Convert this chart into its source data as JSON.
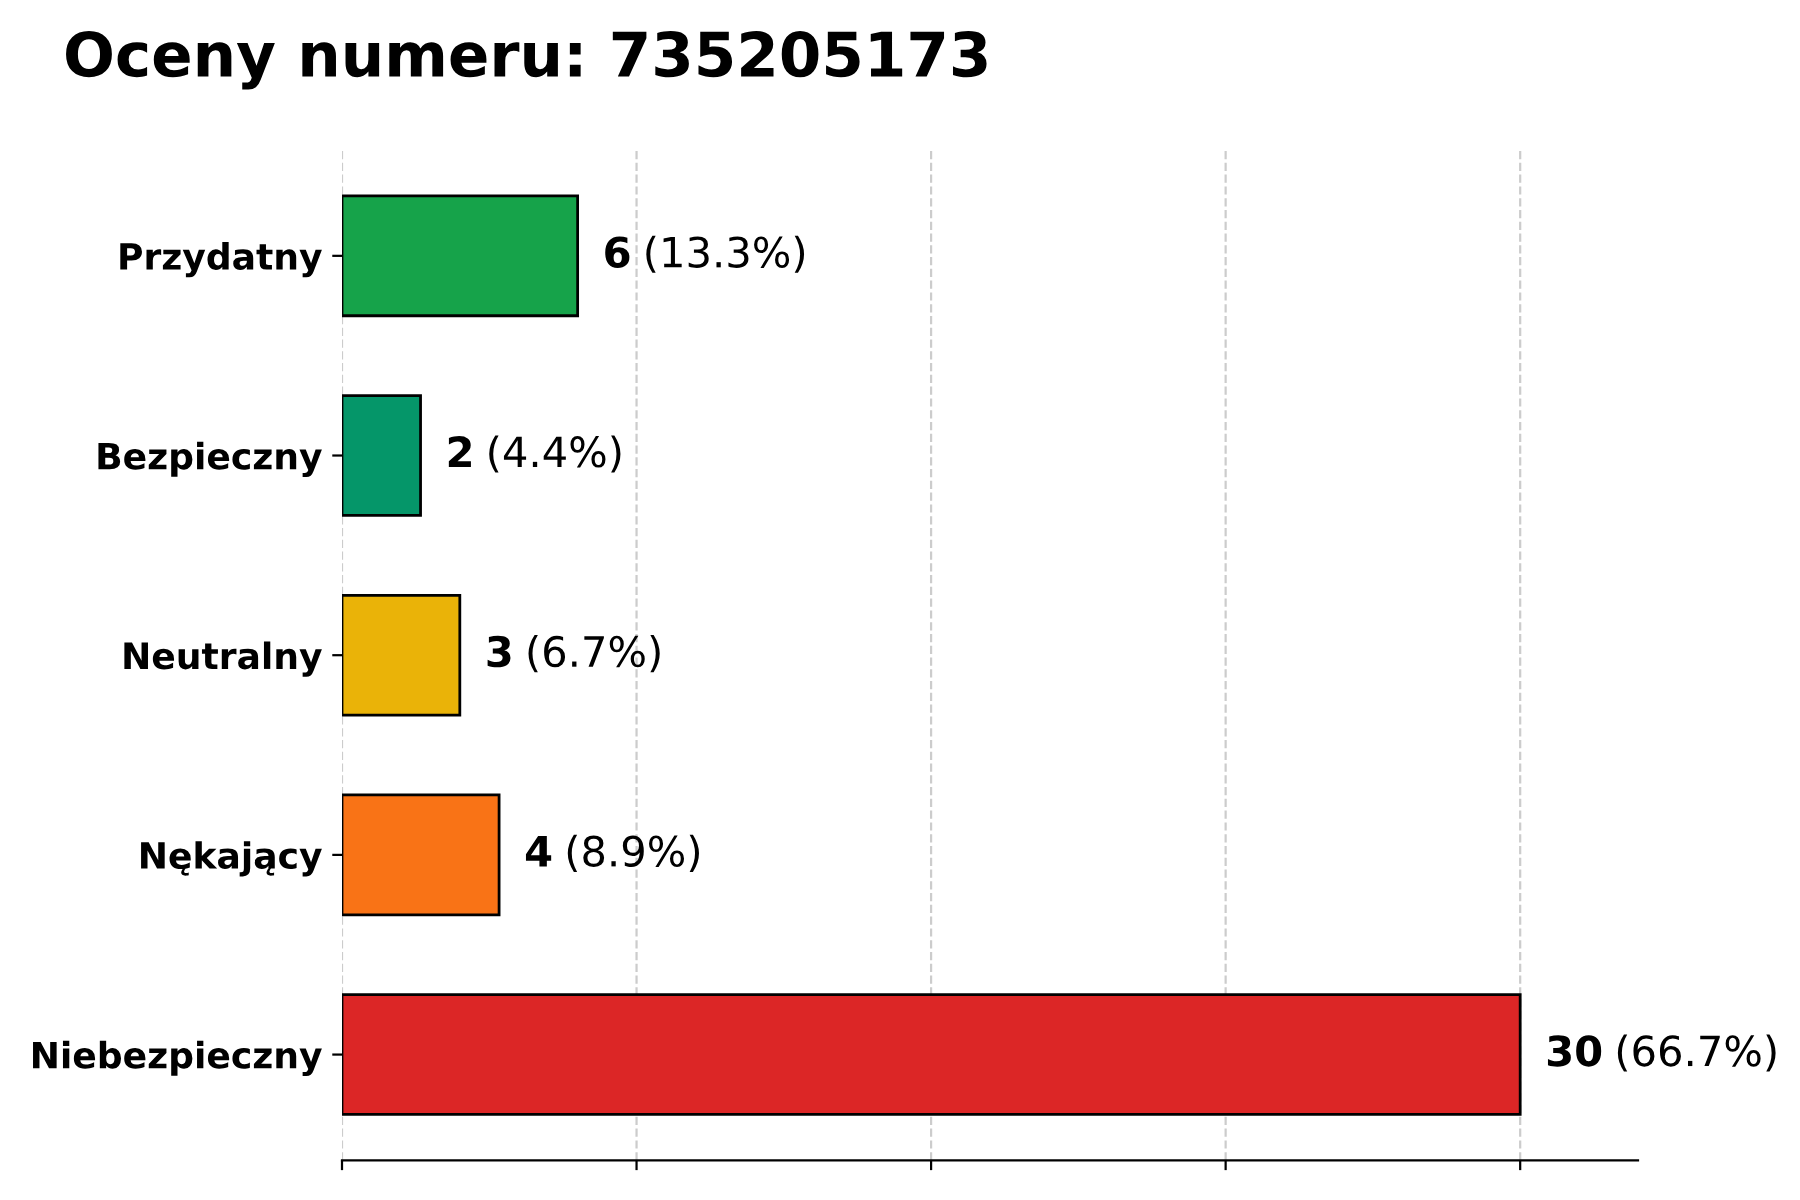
{
  "chart_data": {
    "type": "bar",
    "orientation": "horizontal",
    "title": "Oceny numeru: 735205173",
    "categories": [
      "Przydatny",
      "Bezpieczny",
      "Neutralny",
      "Nękający",
      "Niebezpieczny"
    ],
    "values": [
      6,
      2,
      3,
      4,
      30
    ],
    "colors": [
      "#16a34a",
      "#059669",
      "#eab308",
      "#f97316",
      "#dc2626"
    ],
    "value_labels": [
      "6 (13.3%)",
      "2 (4.4%)",
      "3 (6.7%)",
      "4 (8.9%)",
      "30 (66.7%)"
    ],
    "xlim": [
      0,
      33
    ],
    "xticks": [
      {
        "value": 0,
        "label": null
      },
      {
        "value": 7.5,
        "label": null
      },
      {
        "value": 15,
        "label": null
      },
      {
        "value": 22.5,
        "label": null
      },
      {
        "value": 30,
        "label": null
      }
    ],
    "tick_labels": "y",
    "grid": "x",
    "line_style": "dashed"
  }
}
